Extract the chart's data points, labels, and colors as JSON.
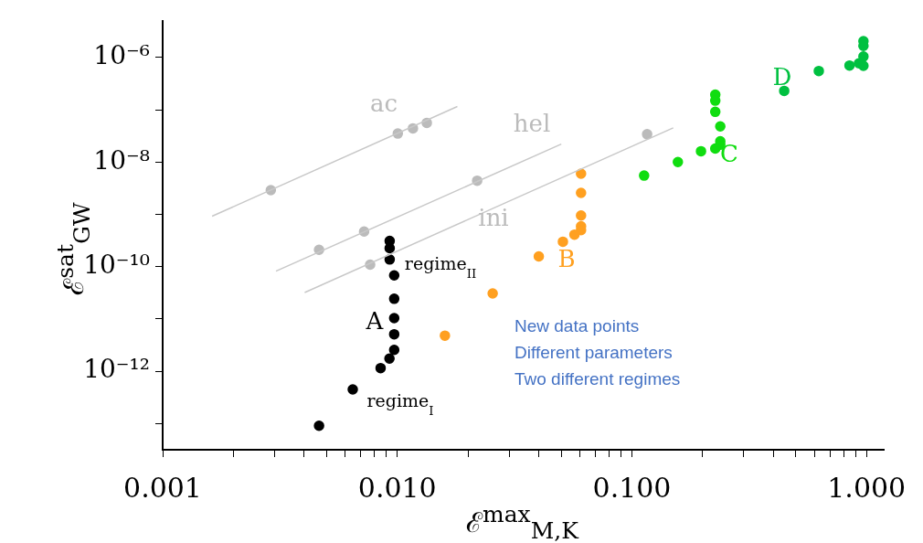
{
  "chart_data": {
    "type": "scatter",
    "xlabel": "ℰ$^{max}$$_{M,K}$",
    "ylabel": "ℰ$^{sat}$$_{GW}$",
    "log": "xy",
    "grid": false,
    "legend": false,
    "xlim": [
      0.001,
      1.19
    ],
    "ylim": [
      3.16e-14,
      5e-06
    ],
    "xticks": [
      0.001,
      {
        "value": 0.002,
        "label": null
      },
      {
        "value": 0.003,
        "label": null
      },
      {
        "value": 0.004,
        "label": null
      },
      {
        "value": 0.005,
        "label": null
      },
      {
        "value": 0.006,
        "label": null
      },
      {
        "value": 0.007,
        "label": null
      },
      {
        "value": 0.008,
        "label": null
      },
      {
        "value": 0.009,
        "label": null
      },
      {
        "value": 0.01,
        "label": "0.010"
      },
      {
        "value": 0.02,
        "label": null
      },
      {
        "value": 0.03,
        "label": null
      },
      {
        "value": 0.04,
        "label": null
      },
      {
        "value": 0.05,
        "label": null
      },
      {
        "value": 0.06,
        "label": null
      },
      {
        "value": 0.07,
        "label": null
      },
      {
        "value": 0.08,
        "label": null
      },
      {
        "value": 0.09,
        "label": null
      },
      {
        "value": 0.1,
        "label": "0.100"
      },
      {
        "value": 0.2,
        "label": null
      },
      {
        "value": 0.3,
        "label": null
      },
      {
        "value": 0.4,
        "label": null
      },
      {
        "value": 0.5,
        "label": null
      },
      {
        "value": 0.6,
        "label": null
      },
      {
        "value": 0.7,
        "label": null
      },
      {
        "value": 0.8,
        "label": null
      },
      {
        "value": 0.9,
        "label": null
      },
      {
        "value": 1,
        "label": "1.000"
      }
    ],
    "yticks": [
      {
        "value": 1e-13,
        "label": null
      },
      {
        "value": 1e-12,
        "label": "10⁻¹²"
      },
      {
        "value": 1e-11,
        "label": null
      },
      {
        "value": 1e-10,
        "label": "10⁻¹⁰"
      },
      {
        "value": 1e-09,
        "label": null
      },
      {
        "value": 1e-08,
        "label": "10⁻⁸"
      },
      {
        "value": 1e-07,
        "label": null
      },
      {
        "value": 1e-06,
        "label": "10⁻⁶"
      }
    ],
    "series": [
      {
        "type": "line",
        "name": "ac",
        "color": "#c8c8c8",
        "x": [
          0.001625,
          0.01803
        ],
        "values": [
          9.2e-10,
          1.15e-07
        ]
      },
      {
        "type": "line",
        "name": "hel",
        "color": "#c8c8c8",
        "x": [
          0.00304,
          0.05
        ],
        "values": [
          8.2e-11,
          2.2e-08
        ]
      },
      {
        "type": "line",
        "name": "ini",
        "color": "#c8c8c8",
        "x": [
          0.00403,
          0.15
        ],
        "values": [
          3.2e-11,
          4.5e-08
        ]
      },
      {
        "marker": "circle",
        "color": "#bbbbbb",
        "x": [
          0.00289,
          0.01005,
          0.01166,
          0.01336
        ],
        "values": [
          2.9e-09,
          3.5e-08,
          4.4e-08,
          5.6e-08
        ]
      },
      {
        "marker": "circle",
        "color": "#bbbbbb",
        "x": [
          0.00464,
          0.00722,
          0.0219
        ],
        "values": [
          2.1e-10,
          4.7e-10,
          4.4e-09
        ]
      },
      {
        "marker": "circle",
        "color": "#bbbbbb",
        "x": [
          0.00766,
          0.1161
        ],
        "values": [
          1.09e-10,
          3.4e-08
        ]
      },
      {
        "name": "regime$_{I}$",
        "marker": "circle",
        "color": "#000000",
        "x": [
          0.00464,
          0.00646,
          0.00849,
          0.00926
        ],
        "values": [
          9.1e-14,
          4.5e-13,
          1.15e-12,
          1.75e-12
        ]
      },
      {
        "name": "regime$_{II}$",
        "marker": "circle",
        "color": "#000000",
        "x": [
          0.00928,
          0.00928,
          0.00928,
          0.0097,
          0.0097,
          0.0097,
          0.0097,
          0.0097
        ],
        "values": [
          3.1e-10,
          2.25e-10,
          1.37e-10,
          6.8e-11,
          2.43e-11,
          1.04e-11,
          5.1e-12,
          2.56e-12
        ]
      },
      {
        "name": "B",
        "marker": "circle",
        "color": "#ffa020",
        "x": [
          0.01596,
          0.0255,
          0.0401,
          0.0508,
          0.0569
        ],
        "values": [
          4.8e-12,
          3.07e-11,
          1.57e-10,
          3e-10,
          4.1e-10
        ]
      },
      {
        "marker": "circle",
        "color": "#ffa020",
        "x": [
          0.0607,
          0.0607,
          0.0607,
          0.0607,
          0.0607
        ],
        "values": [
          6e-09,
          2.57e-09,
          9.5e-10,
          5.9e-10,
          5e-10
        ]
      },
      {
        "name": "C",
        "marker": "circle",
        "color": "#10dd10",
        "x": [
          0.1127,
          0.157,
          0.197,
          0.2266
        ],
        "values": [
          5.5e-09,
          1e-08,
          1.61e-08,
          1.81e-08
        ]
      },
      {
        "marker": "circle",
        "color": "#10dd10",
        "x": [
          0.2266,
          0.2266,
          0.2266,
          0.238,
          0.238,
          0.238
        ],
        "values": [
          1.94e-07,
          1.49e-07,
          9.1e-08,
          4.8e-08,
          2.5e-08,
          2.14e-08
        ]
      },
      {
        "name": "D",
        "marker": "circle",
        "color": "#00c040",
        "x": [
          0.4457,
          0.626,
          0.846,
          0.928
        ],
        "values": [
          2.29e-07,
          5.5e-07,
          7e-07,
          7.7e-07
        ]
      },
      {
        "marker": "circle",
        "color": "#00c040",
        "x": [
          0.97,
          0.97,
          0.97,
          0.97
        ],
        "values": [
          2.04e-06,
          1.66e-06,
          1.04e-06,
          6.9e-07
        ]
      }
    ],
    "annotations": [
      "A",
      "New data points",
      "Different parameters",
      "Two different regimes"
    ]
  }
}
